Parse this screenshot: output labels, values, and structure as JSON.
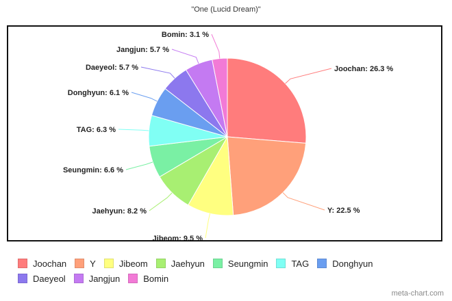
{
  "chart_data": {
    "type": "pie",
    "title": "\"One (Lucid Dream)\"",
    "categories": [
      "Joochan",
      "Y",
      "Jibeom",
      "Jaehyun",
      "Seungmin",
      "TAG",
      "Donghyun",
      "Daeyeol",
      "Jangjun",
      "Bomin"
    ],
    "values": [
      26.3,
      22.5,
      9.5,
      8.2,
      6.6,
      6.3,
      6.1,
      5.7,
      5.7,
      3.1
    ],
    "labels": [
      "Joochan: 26.3 %",
      "Y: 22.5 %",
      "Jibeom: 9.5 %",
      "Jaehyun: 8.2 %",
      "Seungmin: 6.6 %",
      "TAG: 6.3 %",
      "Donghyun: 6.1 %",
      "Daeyeol: 5.7 %",
      "Jangjun: 5.7 %",
      "Bomin: 3.1 %"
    ],
    "colors": [
      "#ff7c7c",
      "#ffa07a",
      "#ffff80",
      "#a8ef72",
      "#7af0a4",
      "#80fff4",
      "#6a9ef0",
      "#8c78ee",
      "#c47af2",
      "#f27ad6"
    ],
    "legend_position": "bottom"
  },
  "legend": {
    "rows": [
      [
        {
          "label": "Joochan",
          "color": "#ff7c7c"
        },
        {
          "label": "Y",
          "color": "#ffa07a"
        },
        {
          "label": "Jibeom",
          "color": "#ffff80"
        },
        {
          "label": "Jaehyun",
          "color": "#a8ef72"
        },
        {
          "label": "Seungmin",
          "color": "#7af0a4"
        },
        {
          "label": "TAG",
          "color": "#80fff4"
        },
        {
          "label": "Donghyun",
          "color": "#6a9ef0"
        }
      ],
      [
        {
          "label": "Daeyeol",
          "color": "#8c78ee"
        },
        {
          "label": "Jangjun",
          "color": "#c47af2"
        },
        {
          "label": "Bomin",
          "color": "#f27ad6"
        }
      ]
    ]
  },
  "watermark": "meta-chart.com"
}
